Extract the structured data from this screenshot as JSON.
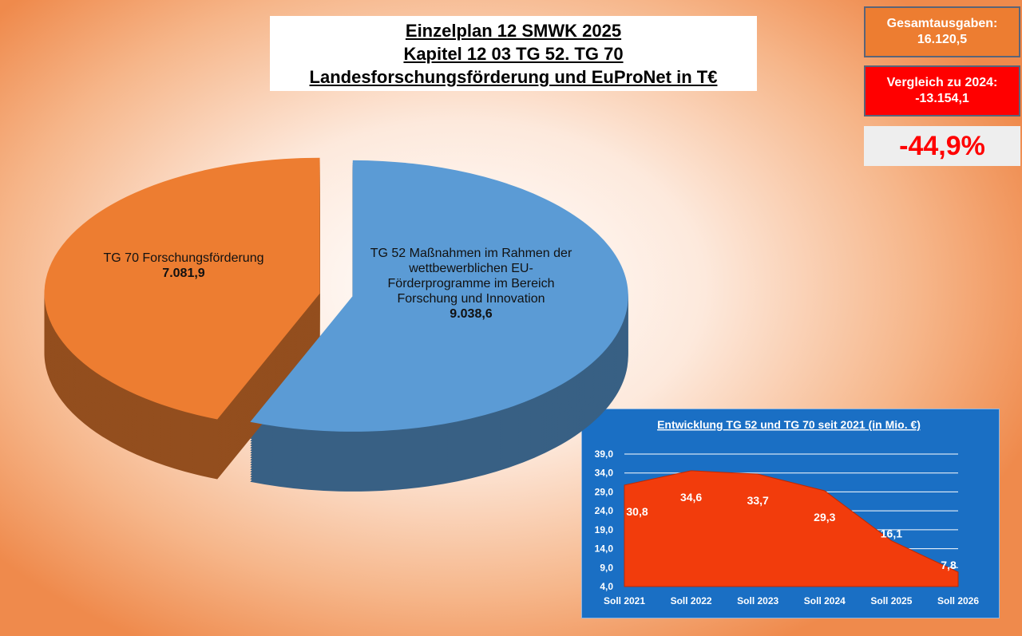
{
  "title_lines": [
    "Einzelplan 12 SMWK 2025",
    "Kapitel 12 03 TG 52. TG 70",
    "Landesforschungsförderung und EuProNet in T€"
  ],
  "summary": {
    "total_label": "Gesamtausgaben:",
    "total_value": "16.120,5",
    "compare_label": "Vergleich zu 2024:",
    "compare_value": "-13.154,1",
    "change": "-44,9%"
  },
  "chart_data": [
    {
      "type": "pie",
      "categories": [
        "TG 52 Maßnahmen im Rahmen der wettbewerblichen EU-Förderprogramme im Bereich Forschung und Innovation",
        "TG 70 Forschungsförderung"
      ],
      "values": [
        9038.6,
        7081.9
      ],
      "value_labels": [
        "9.038,6",
        "7.081,9"
      ],
      "colors": [
        "#5b9bd5",
        "#ed7d31"
      ]
    },
    {
      "type": "area",
      "title": "Entwicklung TG 52 und TG 70 seit 2021 (in Mio. €)",
      "categories": [
        "Soll 2021",
        "Soll 2022",
        "Soll 2023",
        "Soll 2024",
        "Soll 2025",
        "Soll 2026"
      ],
      "values": [
        30.8,
        34.6,
        33.7,
        29.3,
        16.1,
        7.8
      ],
      "value_labels": [
        "30,8",
        "34,6",
        "33,7",
        "29,3",
        "16,1",
        "7,8"
      ],
      "color": "#f23c0c",
      "ylim": [
        4,
        39
      ],
      "yticks": [
        {
          "value": 4,
          "label": "4,0"
        },
        {
          "value": 9,
          "label": "9,0"
        },
        {
          "value": 14,
          "label": "14,0"
        },
        {
          "value": 19,
          "label": "19,0"
        },
        {
          "value": 24,
          "label": "24,0"
        },
        {
          "value": 29,
          "label": "29,0"
        },
        {
          "value": 34,
          "label": "34,0"
        },
        {
          "value": 39,
          "label": "39,0"
        }
      ],
      "grid": true
    }
  ]
}
